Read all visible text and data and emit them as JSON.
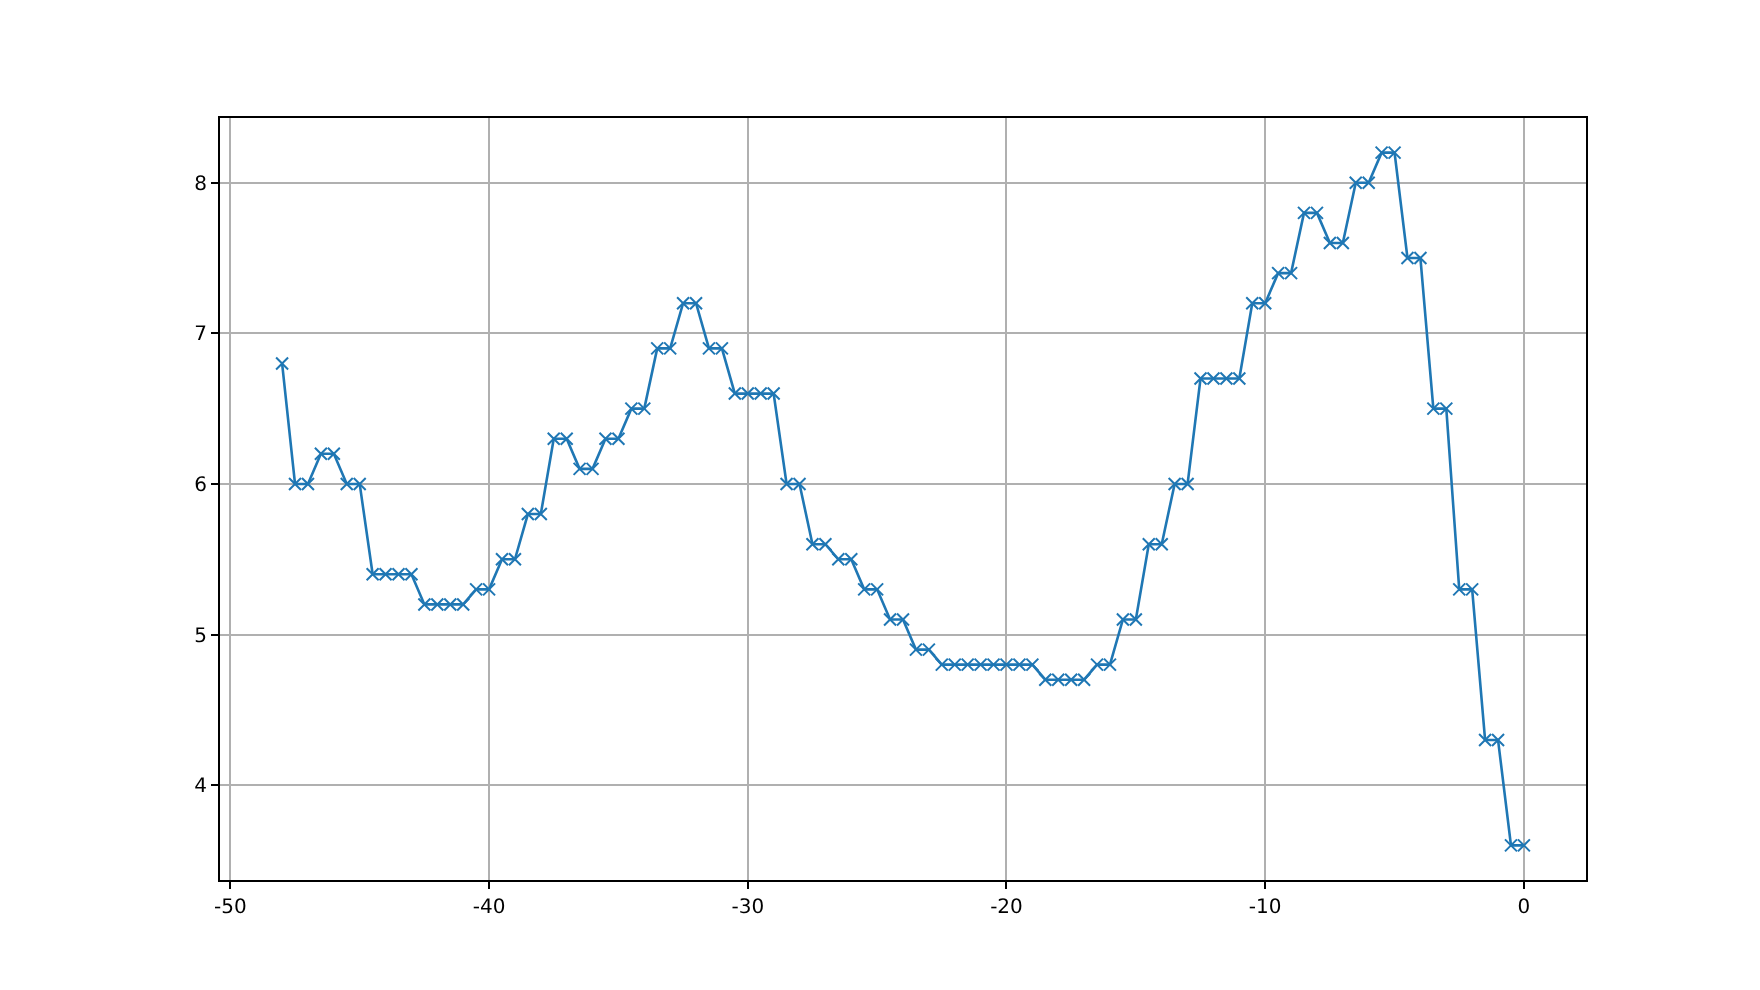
{
  "chart_data": {
    "type": "line",
    "marker": "cross",
    "grid": true,
    "x": [
      -48,
      -47.5,
      -47,
      -46.5,
      -46,
      -45.5,
      -45,
      -44.5,
      -44,
      -43.5,
      -43,
      -42.5,
      -42,
      -41.5,
      -41,
      -40.5,
      -40,
      -39.5,
      -39,
      -38.5,
      -38,
      -37.5,
      -37,
      -36.5,
      -36,
      -35.5,
      -35,
      -34.5,
      -34,
      -33.5,
      -33,
      -32.5,
      -32,
      -31.5,
      -31,
      -30.5,
      -30,
      -29.5,
      -29,
      -28.5,
      -28,
      -27.5,
      -27,
      -26.5,
      -26,
      -25.5,
      -25,
      -24.5,
      -24,
      -23.5,
      -23,
      -22.5,
      -22,
      -21.5,
      -21,
      -20.5,
      -20,
      -19.5,
      -19,
      -18.5,
      -18,
      -17.5,
      -17,
      -16.5,
      -16,
      -15.5,
      -15,
      -14.5,
      -14,
      -13.5,
      -13,
      -12.5,
      -12,
      -11.5,
      -11,
      -10.5,
      -10,
      -9.5,
      -9,
      -8.5,
      -8,
      -7.5,
      -7,
      -6.5,
      -6,
      -5.5,
      -5,
      -4.5,
      -4,
      -3.5,
      -3,
      -2.5,
      -2,
      -1.5,
      -1,
      -0.5,
      0
    ],
    "series": [
      {
        "color": "#1f77b4",
        "values": [
          6.8,
          6.0,
          6.0,
          6.2,
          6.2,
          6.0,
          6.0,
          5.4,
          5.4,
          5.4,
          5.4,
          5.2,
          5.2,
          5.2,
          5.2,
          5.3,
          5.3,
          5.5,
          5.5,
          5.8,
          5.8,
          6.3,
          6.3,
          6.1,
          6.1,
          6.3,
          6.3,
          6.5,
          6.5,
          6.9,
          6.9,
          7.2,
          7.2,
          6.9,
          6.9,
          6.6,
          6.6,
          6.6,
          6.6,
          6.0,
          6.0,
          5.6,
          5.6,
          5.5,
          5.5,
          5.3,
          5.3,
          5.1,
          5.1,
          4.9,
          4.9,
          4.8,
          4.8,
          4.8,
          4.8,
          4.8,
          4.8,
          4.8,
          4.8,
          4.7,
          4.7,
          4.7,
          4.7,
          4.8,
          4.8,
          5.1,
          5.1,
          5.6,
          5.6,
          6.0,
          6.0,
          6.7,
          6.7,
          6.7,
          6.7,
          7.2,
          7.2,
          7.4,
          7.4,
          7.8,
          7.8,
          7.6,
          7.6,
          8.0,
          8.0,
          8.2,
          8.2,
          7.5,
          7.5,
          6.5,
          6.5,
          5.3,
          5.3,
          4.3,
          4.3,
          3.6,
          3.6
        ]
      }
    ],
    "xlim": [
      -50.4,
      2.4
    ],
    "xticks": [
      -50,
      -40,
      -30,
      -20,
      -10,
      0
    ],
    "ylim": [
      3.37,
      8.43
    ],
    "yticks": [
      4,
      5,
      6,
      7,
      8
    ]
  }
}
